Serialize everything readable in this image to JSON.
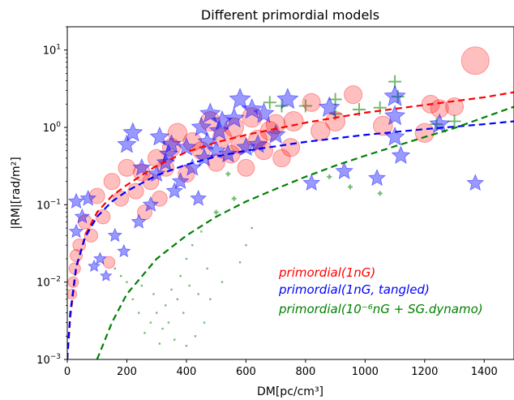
{
  "chart_data": {
    "type": "scatter",
    "title": "Different primordial models",
    "xlabel": "DM[pc/cm³]",
    "ylabel": "|RM|[rad/m²]",
    "xlim": [
      0,
      1500
    ],
    "ylim": [
      0.001,
      20
    ],
    "yscale": "log",
    "x_ticks": [
      0,
      200,
      400,
      600,
      800,
      1000,
      1200,
      1400
    ],
    "y_ticks": [
      {
        "value": 0.001,
        "base": "10",
        "exp": "−3"
      },
      {
        "value": 0.01,
        "base": "10",
        "exp": "−2"
      },
      {
        "value": 0.1,
        "base": "10",
        "exp": "−1"
      },
      {
        "value": 1,
        "base": "10",
        "exp": "0"
      },
      {
        "value": 10,
        "base": "10",
        "exp": "1"
      }
    ],
    "grid": false,
    "legend_position": "bottom-right",
    "series": [
      {
        "name": "primordial(1nG)",
        "color": "#ff0000",
        "marker": "circle",
        "fit_curve": {
          "x": [
            0,
            10,
            30,
            60,
            100,
            150,
            200,
            300,
            400,
            500,
            600,
            800,
            1000,
            1200,
            1400,
            1500
          ],
          "y": [
            0.001,
            0.0035,
            0.015,
            0.04,
            0.08,
            0.13,
            0.18,
            0.32,
            0.48,
            0.64,
            0.8,
            1.15,
            1.55,
            1.95,
            2.45,
            2.85
          ]
        },
        "points": [
          {
            "x": 1370,
            "y": 7.3
          },
          {
            "x": 960,
            "y": 2.65
          },
          {
            "x": 820,
            "y": 2.1
          },
          {
            "x": 1220,
            "y": 2.0
          },
          {
            "x": 1250,
            "y": 1.75
          },
          {
            "x": 1300,
            "y": 1.85
          },
          {
            "x": 1060,
            "y": 1.05
          },
          {
            "x": 1200,
            "y": 0.85
          },
          {
            "x": 370,
            "y": 0.85
          },
          {
            "x": 480,
            "y": 1.2
          },
          {
            "x": 560,
            "y": 1.0
          },
          {
            "x": 620,
            "y": 1.35
          },
          {
            "x": 700,
            "y": 1.1
          },
          {
            "x": 760,
            "y": 1.2
          },
          {
            "x": 250,
            "y": 0.26
          },
          {
            "x": 200,
            "y": 0.3
          },
          {
            "x": 150,
            "y": 0.2
          },
          {
            "x": 100,
            "y": 0.13
          },
          {
            "x": 60,
            "y": 0.06
          },
          {
            "x": 40,
            "y": 0.03
          },
          {
            "x": 25,
            "y": 0.015
          },
          {
            "x": 20,
            "y": 0.01
          },
          {
            "x": 15,
            "y": 0.007
          },
          {
            "x": 30,
            "y": 0.022
          },
          {
            "x": 80,
            "y": 0.04
          },
          {
            "x": 120,
            "y": 0.07
          },
          {
            "x": 300,
            "y": 0.4
          },
          {
            "x": 350,
            "y": 0.55
          },
          {
            "x": 420,
            "y": 0.65
          },
          {
            "x": 450,
            "y": 0.5
          },
          {
            "x": 520,
            "y": 0.75
          },
          {
            "x": 580,
            "y": 0.6
          },
          {
            "x": 640,
            "y": 0.7
          },
          {
            "x": 680,
            "y": 0.9
          },
          {
            "x": 330,
            "y": 0.3
          },
          {
            "x": 280,
            "y": 0.2
          },
          {
            "x": 230,
            "y": 0.15
          },
          {
            "x": 180,
            "y": 0.12
          },
          {
            "x": 400,
            "y": 0.25
          },
          {
            "x": 500,
            "y": 0.35
          },
          {
            "x": 550,
            "y": 0.45
          },
          {
            "x": 600,
            "y": 0.3
          },
          {
            "x": 660,
            "y": 0.5
          },
          {
            "x": 720,
            "y": 0.4
          },
          {
            "x": 750,
            "y": 0.55
          },
          {
            "x": 850,
            "y": 0.9
          },
          {
            "x": 900,
            "y": 1.2
          },
          {
            "x": 140,
            "y": 0.018
          },
          {
            "x": 260,
            "y": 0.08
          },
          {
            "x": 310,
            "y": 0.12
          }
        ]
      },
      {
        "name": "primordial(1nG, tangled)",
        "color": "#0000ff",
        "marker": "star",
        "fit_curve": {
          "x": [
            0,
            10,
            30,
            60,
            100,
            150,
            200,
            300,
            400,
            500,
            600,
            800,
            1000,
            1200,
            1400,
            1500
          ],
          "y": [
            0.001,
            0.004,
            0.016,
            0.038,
            0.07,
            0.11,
            0.15,
            0.24,
            0.33,
            0.42,
            0.5,
            0.65,
            0.8,
            0.95,
            1.1,
            1.2
          ]
        },
        "points": [
          {
            "x": 30,
            "y": 0.11
          },
          {
            "x": 70,
            "y": 0.12
          },
          {
            "x": 30,
            "y": 0.045
          },
          {
            "x": 50,
            "y": 0.07
          },
          {
            "x": 200,
            "y": 0.6
          },
          {
            "x": 220,
            "y": 0.85
          },
          {
            "x": 310,
            "y": 0.75
          },
          {
            "x": 350,
            "y": 0.6
          },
          {
            "x": 400,
            "y": 0.55
          },
          {
            "x": 450,
            "y": 1.0
          },
          {
            "x": 480,
            "y": 1.5
          },
          {
            "x": 520,
            "y": 1.2
          },
          {
            "x": 560,
            "y": 1.3
          },
          {
            "x": 580,
            "y": 2.3
          },
          {
            "x": 620,
            "y": 1.7
          },
          {
            "x": 660,
            "y": 1.5
          },
          {
            "x": 740,
            "y": 2.3
          },
          {
            "x": 880,
            "y": 1.8
          },
          {
            "x": 1100,
            "y": 2.5
          },
          {
            "x": 1100,
            "y": 1.4
          },
          {
            "x": 1100,
            "y": 0.75
          },
          {
            "x": 1120,
            "y": 0.43
          },
          {
            "x": 1250,
            "y": 1.1
          },
          {
            "x": 1370,
            "y": 0.19
          },
          {
            "x": 930,
            "y": 0.27
          },
          {
            "x": 1040,
            "y": 0.22
          },
          {
            "x": 820,
            "y": 0.19
          },
          {
            "x": 250,
            "y": 0.3
          },
          {
            "x": 300,
            "y": 0.25
          },
          {
            "x": 330,
            "y": 0.35
          },
          {
            "x": 380,
            "y": 0.2
          },
          {
            "x": 420,
            "y": 0.3
          },
          {
            "x": 460,
            "y": 0.4
          },
          {
            "x": 500,
            "y": 0.5
          },
          {
            "x": 540,
            "y": 0.45
          },
          {
            "x": 600,
            "y": 0.55
          },
          {
            "x": 640,
            "y": 0.6
          },
          {
            "x": 700,
            "y": 0.8
          },
          {
            "x": 160,
            "y": 0.04
          },
          {
            "x": 190,
            "y": 0.025
          },
          {
            "x": 240,
            "y": 0.06
          },
          {
            "x": 280,
            "y": 0.1
          },
          {
            "x": 360,
            "y": 0.15
          },
          {
            "x": 440,
            "y": 0.12
          },
          {
            "x": 110,
            "y": 0.02
          },
          {
            "x": 130,
            "y": 0.012
          },
          {
            "x": 90,
            "y": 0.016
          },
          {
            "x": 340,
            "y": 0.45
          },
          {
            "x": 470,
            "y": 0.65
          },
          {
            "x": 510,
            "y": 0.9
          }
        ]
      },
      {
        "name": "primordial(10⁻⁶nG + SG.dynamo)",
        "color": "#008000",
        "marker": "plus",
        "fit_curve": {
          "x": [
            100,
            150,
            200,
            300,
            400,
            500,
            600,
            700,
            800,
            900,
            1000,
            1100,
            1200,
            1300,
            1400,
            1500
          ],
          "y": [
            0.001,
            0.003,
            0.007,
            0.02,
            0.04,
            0.07,
            0.11,
            0.16,
            0.23,
            0.32,
            0.43,
            0.57,
            0.75,
            0.98,
            1.35,
            1.85
          ]
        },
        "points": [
          {
            "x": 1100,
            "y": 3.9
          },
          {
            "x": 900,
            "y": 2.3
          },
          {
            "x": 1110,
            "y": 2.5
          },
          {
            "x": 980,
            "y": 1.7
          },
          {
            "x": 900,
            "y": 1.5
          },
          {
            "x": 1050,
            "y": 1.8
          },
          {
            "x": 800,
            "y": 1.9
          },
          {
            "x": 720,
            "y": 1.9
          },
          {
            "x": 680,
            "y": 2.1
          },
          {
            "x": 1240,
            "y": 1.1
          },
          {
            "x": 1300,
            "y": 1.2
          },
          {
            "x": 1050,
            "y": 0.14
          },
          {
            "x": 950,
            "y": 0.17
          },
          {
            "x": 880,
            "y": 0.23
          },
          {
            "x": 540,
            "y": 0.25
          },
          {
            "x": 560,
            "y": 0.12
          },
          {
            "x": 500,
            "y": 0.08
          },
          {
            "x": 450,
            "y": 0.045
          },
          {
            "x": 420,
            "y": 0.03
          },
          {
            "x": 400,
            "y": 0.02
          },
          {
            "x": 380,
            "y": 0.012
          },
          {
            "x": 350,
            "y": 0.008
          },
          {
            "x": 330,
            "y": 0.005
          },
          {
            "x": 300,
            "y": 0.004
          },
          {
            "x": 280,
            "y": 0.003
          },
          {
            "x": 320,
            "y": 0.0025
          },
          {
            "x": 360,
            "y": 0.0018
          },
          {
            "x": 400,
            "y": 0.0015
          },
          {
            "x": 430,
            "y": 0.002
          },
          {
            "x": 460,
            "y": 0.003
          },
          {
            "x": 480,
            "y": 0.006
          },
          {
            "x": 520,
            "y": 0.01
          },
          {
            "x": 440,
            "y": 0.007
          },
          {
            "x": 390,
            "y": 0.004
          },
          {
            "x": 340,
            "y": 0.003
          },
          {
            "x": 310,
            "y": 0.0016
          },
          {
            "x": 260,
            "y": 0.0022
          },
          {
            "x": 240,
            "y": 0.004
          },
          {
            "x": 220,
            "y": 0.006
          },
          {
            "x": 200,
            "y": 0.01
          },
          {
            "x": 180,
            "y": 0.012
          },
          {
            "x": 160,
            "y": 0.015
          },
          {
            "x": 600,
            "y": 0.03
          },
          {
            "x": 620,
            "y": 0.05
          },
          {
            "x": 580,
            "y": 0.018
          },
          {
            "x": 470,
            "y": 0.015
          },
          {
            "x": 410,
            "y": 0.009
          },
          {
            "x": 370,
            "y": 0.006
          },
          {
            "x": 290,
            "y": 0.007
          },
          {
            "x": 250,
            "y": 0.009
          }
        ]
      }
    ]
  }
}
